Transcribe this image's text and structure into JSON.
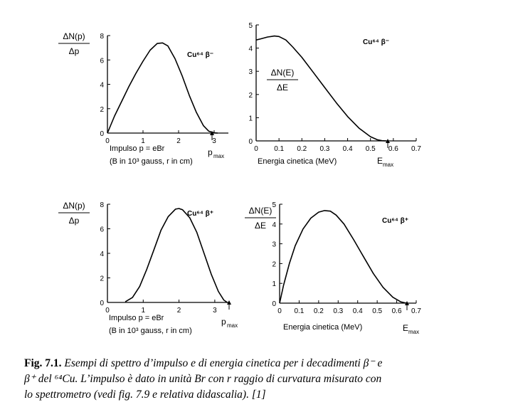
{
  "chart_data": [
    {
      "id": "p_beta_minus",
      "type": "line",
      "ylabel_num": "ΔN(p)",
      "ylabel_den": "Δp",
      "annotation": "Cu⁶⁴  β⁻",
      "xlabel_line1": "Impulso p = eBr",
      "xlabel_line2": "(B in 10³ gauss, r in cm)",
      "xmax_label": "p",
      "xmax_sub": "max",
      "xlim": [
        0,
        3.4
      ],
      "ylim": [
        0,
        8
      ],
      "xticks": [
        "0",
        "1",
        "2",
        "3"
      ],
      "yticks": [
        "0",
        "2",
        "4",
        "6",
        "8"
      ],
      "series": [
        {
          "x": [
            0,
            0.2,
            0.4,
            0.6,
            0.8,
            1.0,
            1.2,
            1.4,
            1.55,
            1.7,
            1.9,
            2.1,
            2.3,
            2.5,
            2.7,
            2.85,
            3.0,
            3.1
          ],
          "y": [
            0,
            1.4,
            2.6,
            3.8,
            4.9,
            5.9,
            6.8,
            7.35,
            7.4,
            7.15,
            6.1,
            4.7,
            3.1,
            1.7,
            0.6,
            0.15,
            0.02,
            0
          ]
        }
      ]
    },
    {
      "id": "e_beta_minus",
      "type": "line",
      "ylabel_num": "ΔN(E)",
      "ylabel_den": "ΔE",
      "annotation": "Cu⁶⁴  β⁻",
      "xlabel_line1": "Energia cinetica (MeV)",
      "xmax_label": "E",
      "xmax_sub": "max",
      "xlim": [
        0,
        0.7
      ],
      "ylim": [
        0,
        5
      ],
      "xticks": [
        "0",
        "0.1",
        "0.2",
        "0.3",
        "0.4",
        "0.5",
        "0.6",
        "0.7"
      ],
      "yticks": [
        "0",
        "1",
        "2",
        "3",
        "4",
        "5"
      ],
      "series": [
        {
          "x": [
            0,
            0.02,
            0.05,
            0.08,
            0.1,
            0.13,
            0.16,
            0.2,
            0.25,
            0.3,
            0.35,
            0.4,
            0.45,
            0.5,
            0.53,
            0.55,
            0.57
          ],
          "y": [
            4.35,
            4.4,
            4.48,
            4.52,
            4.5,
            4.35,
            4.05,
            3.6,
            2.95,
            2.3,
            1.65,
            1.05,
            0.55,
            0.18,
            0.05,
            0.01,
            0
          ]
        }
      ]
    },
    {
      "id": "p_beta_plus",
      "type": "line",
      "ylabel_num": "ΔN(p)",
      "ylabel_den": "Δp",
      "annotation": "Cu⁶⁴  β⁺",
      "xlabel_line1": "Impulso p = eBr",
      "xlabel_line2": "(B in 10³ gauss, r in cm)",
      "xmax_label": "p",
      "xmax_sub": "max",
      "xlim": [
        0,
        3.4
      ],
      "ylim": [
        0,
        8
      ],
      "xticks": [
        "0",
        "1",
        "2",
        "3"
      ],
      "yticks": [
        "0",
        "2",
        "4",
        "6",
        "8"
      ],
      "series": [
        {
          "x": [
            0.5,
            0.7,
            0.9,
            1.1,
            1.3,
            1.5,
            1.7,
            1.9,
            2.0,
            2.1,
            2.3,
            2.5,
            2.7,
            2.9,
            3.1,
            3.25,
            3.35
          ],
          "y": [
            0.05,
            0.4,
            1.3,
            2.7,
            4.3,
            5.9,
            7.0,
            7.6,
            7.65,
            7.55,
            6.9,
            5.7,
            4.0,
            2.3,
            0.9,
            0.2,
            0
          ]
        }
      ]
    },
    {
      "id": "e_beta_plus",
      "type": "line",
      "ylabel_num": "ΔN(E)",
      "ylabel_den": "ΔE",
      "annotation": "Cu⁶⁴  β⁺",
      "xlabel_line1": "Energia cinetica (MeV)",
      "xmax_label": "E",
      "xmax_sub": "max",
      "xlim": [
        0,
        0.7
      ],
      "ylim": [
        0,
        5
      ],
      "xticks": [
        "0",
        "0.1",
        "0.2",
        "0.3",
        "0.4",
        "0.5",
        "0.6",
        "0.7"
      ],
      "yticks": [
        "0",
        "1",
        "2",
        "3",
        "4",
        "5"
      ],
      "series": [
        {
          "x": [
            0,
            0.02,
            0.05,
            0.08,
            0.12,
            0.16,
            0.2,
            0.23,
            0.26,
            0.29,
            0.33,
            0.38,
            0.43,
            0.48,
            0.53,
            0.58,
            0.62,
            0.65
          ],
          "y": [
            0,
            0.9,
            2.0,
            2.9,
            3.75,
            4.3,
            4.6,
            4.68,
            4.65,
            4.45,
            4.0,
            3.2,
            2.35,
            1.5,
            0.8,
            0.3,
            0.07,
            0
          ]
        }
      ]
    }
  ],
  "caption": {
    "label": "Fig. 7.1.",
    "line1": "Esempi di spettro d’impulso e di energia cinetica per i decadimenti β⁻ e",
    "line2": "β⁺ del ⁶⁴Cu. L’impulso è dato in unità Br con r raggio di curvatura misurato con",
    "line3": "lo spettrometro (vedi fig. 7.9 e relativa didascalia). [1]"
  }
}
